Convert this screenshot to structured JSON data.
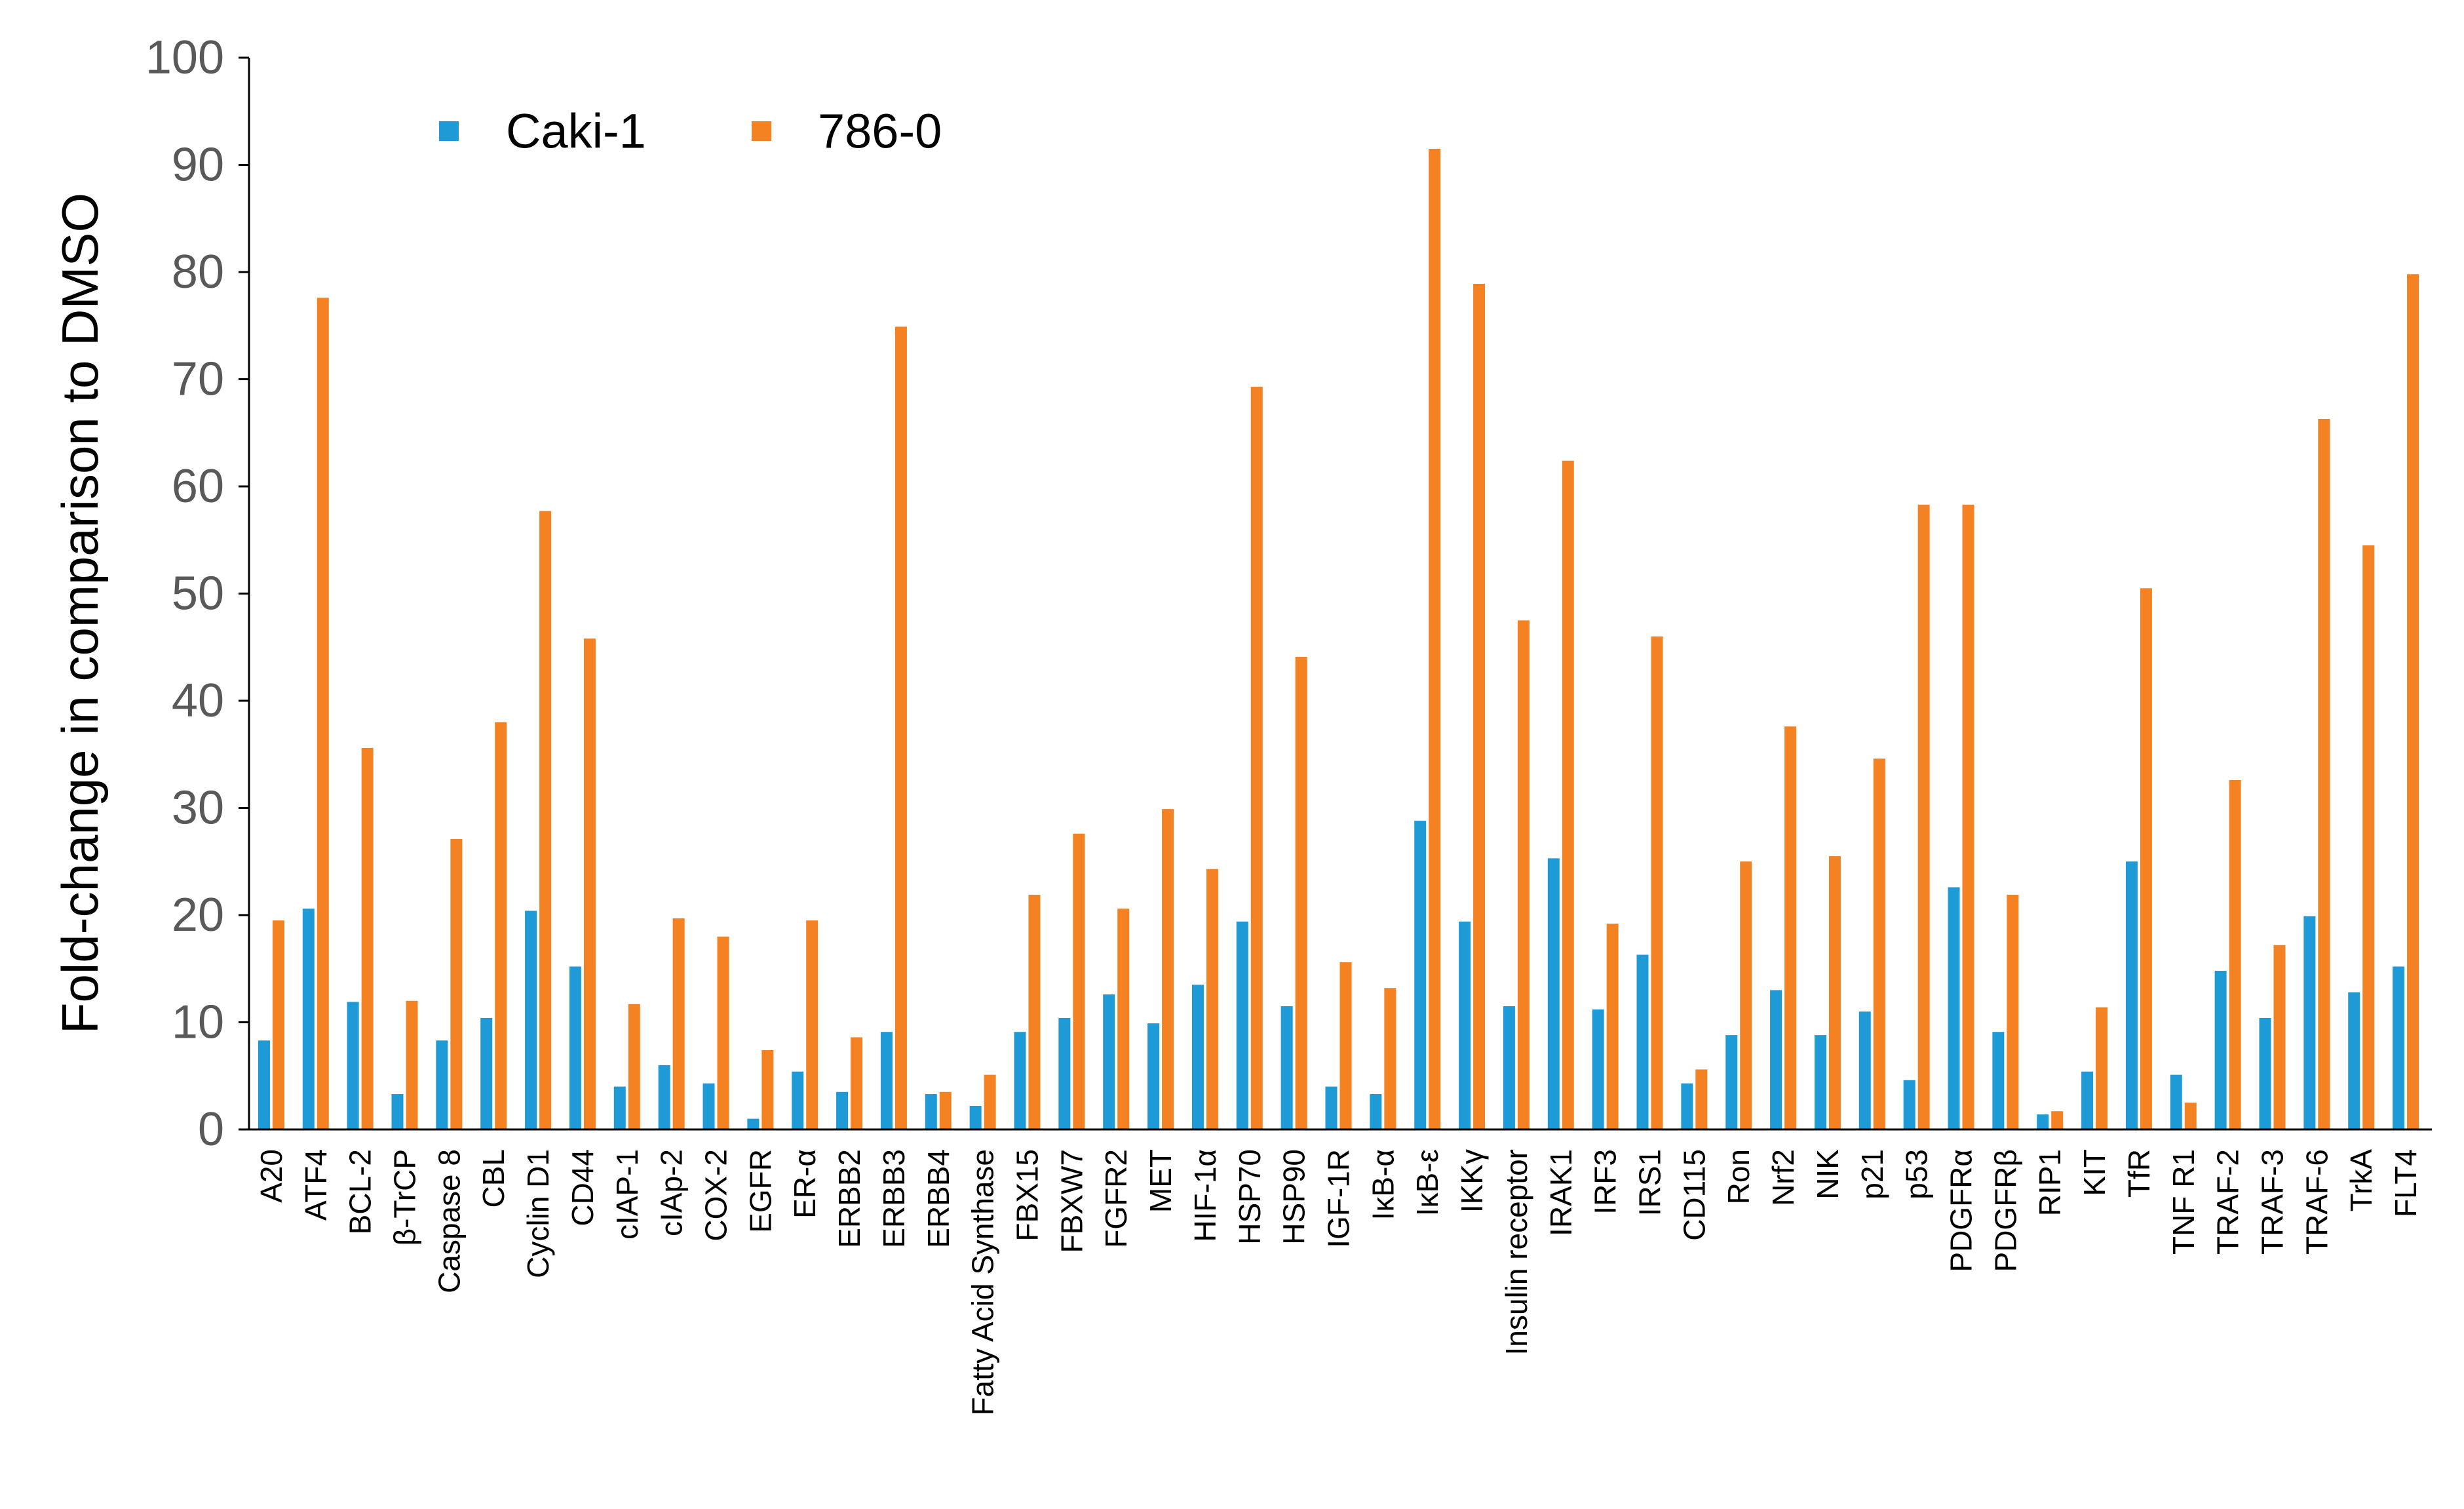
{
  "chart_data": {
    "type": "bar",
    "title": "",
    "xlabel": "",
    "ylabel": "Fold-change in comparison to DMSO",
    "ylim": [
      0,
      100
    ],
    "yticks": [
      "0",
      "10",
      "20",
      "30",
      "40",
      "50",
      "60",
      "70",
      "80",
      "90",
      "100"
    ],
    "grid": false,
    "legend_position": "top-left",
    "categories": [
      "A20",
      "ATF4",
      "BCL-2",
      "β-TrCP",
      "Caspase 8",
      "CBL",
      "Cyclin D1",
      "CD44",
      "cIAP-1",
      "cIAp-2",
      "COX-2",
      "EGFR",
      "ER-α",
      "ERBB2",
      "ERBB3",
      "ERBB4",
      "Fatty Acid Synthase",
      "FBX15",
      "FBXW7",
      "FGFR2",
      "MET",
      "HIF-1α",
      "HSP70",
      "HSP90",
      "IGF-1R",
      "IκB-α",
      "IκB-ε",
      "IKKγ",
      "Insulin receptor",
      "IRAK1",
      "IRF3",
      "IRS1",
      "CD115",
      "Ron",
      "Nrf2",
      "NIK",
      "p21",
      "p53",
      "PDGFRα",
      "PDGFRβ",
      "RIP1",
      "KIT",
      "TfR",
      "TNF R1",
      "TRAF-2",
      "TRAF-3",
      "TRAF-6",
      "TrkA",
      "FLT4"
    ],
    "series": [
      {
        "name": "Caki-1",
        "color": "#1e9ad6",
        "values": [
          8.3,
          20.6,
          11.9,
          3.3,
          8.3,
          10.4,
          20.4,
          15.2,
          4.0,
          6.0,
          4.3,
          1.0,
          5.4,
          3.5,
          9.1,
          3.3,
          2.2,
          9.1,
          10.4,
          12.6,
          9.9,
          13.5,
          19.4,
          11.5,
          4.0,
          3.3,
          28.8,
          19.4,
          11.5,
          25.3,
          11.2,
          16.3,
          4.3,
          8.8,
          13.0,
          8.8,
          11.0,
          4.6,
          22.6,
          9.1,
          1.4,
          5.4,
          25.0,
          5.1,
          14.8,
          10.4,
          19.9,
          12.8,
          15.2
        ]
      },
      {
        "name": "786-0",
        "color": "#f58222",
        "values": [
          19.5,
          77.6,
          35.6,
          12.0,
          27.1,
          38.0,
          57.7,
          45.8,
          11.7,
          19.7,
          18.0,
          7.4,
          19.5,
          8.6,
          74.9,
          3.5,
          5.1,
          21.9,
          27.6,
          20.6,
          29.9,
          24.3,
          69.3,
          44.1,
          15.6,
          13.2,
          91.5,
          78.9,
          47.5,
          62.4,
          19.2,
          46.0,
          5.6,
          25.0,
          37.6,
          25.5,
          34.6,
          58.3,
          58.3,
          21.9,
          1.7,
          11.4,
          50.5,
          2.5,
          32.6,
          17.2,
          66.3,
          54.5,
          79.8
        ]
      }
    ]
  }
}
